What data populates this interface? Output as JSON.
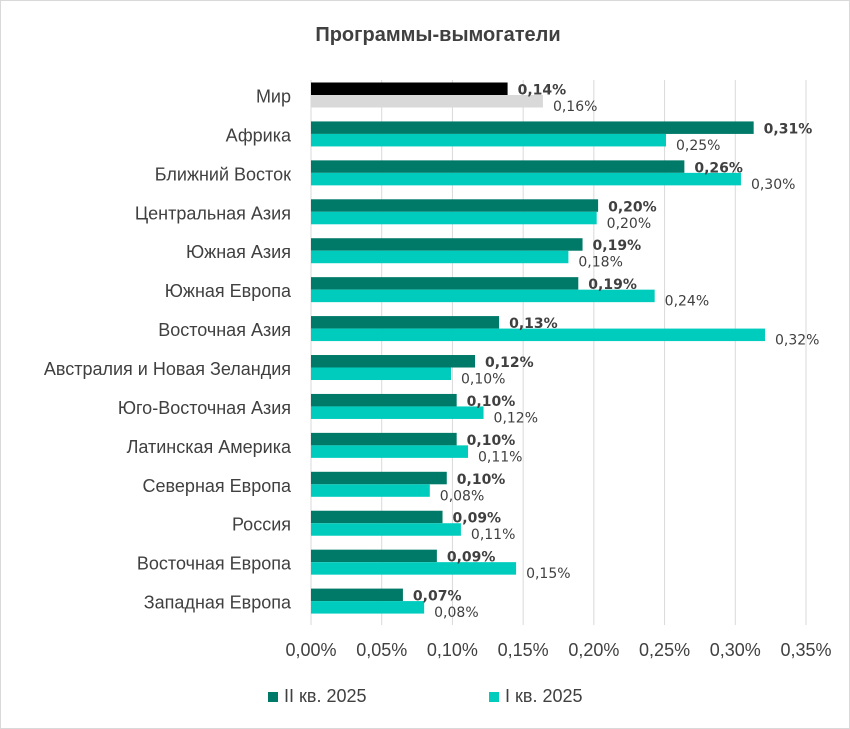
{
  "chart_data": {
    "type": "bar",
    "orientation": "horizontal",
    "title": "Программы-вымогатели",
    "categories": [
      "Мир",
      "Африка",
      "Ближний Восток",
      "Центральная Азия",
      "Южная Азия",
      "Южная Европа",
      "Восточная Азия",
      "Австралия и Новая Зеландия",
      "Юго-Восточная Азия",
      "Латинская Америка",
      "Северная Европа",
      "Россия",
      "Восточная Европа",
      "Западная Европа"
    ],
    "series": [
      {
        "name": "II кв. 2025",
        "color": "#007a68",
        "values": [
          0.139,
          0.313,
          0.264,
          0.203,
          0.192,
          0.189,
          0.133,
          0.116,
          0.103,
          0.103,
          0.096,
          0.093,
          0.089,
          0.065
        ],
        "labels": [
          "0,14%",
          "0,31%",
          "0,26%",
          "0,20%",
          "0,19%",
          "0,19%",
          "0,13%",
          "0,12%",
          "0,10%",
          "0,10%",
          "0,10%",
          "0,09%",
          "0,09%",
          "0,07%"
        ]
      },
      {
        "name": "I кв. 2025",
        "color": "#00ccbd",
        "values": [
          0.164,
          0.251,
          0.304,
          0.202,
          0.182,
          0.243,
          0.321,
          0.099,
          0.122,
          0.111,
          0.084,
          0.106,
          0.145,
          0.08
        ],
        "labels": [
          "0,16%",
          "0,25%",
          "0,30%",
          "0,20%",
          "0,18%",
          "0,24%",
          "0,32%",
          "0,10%",
          "0,12%",
          "0,11%",
          "0,08%",
          "0,11%",
          "0,15%",
          "0,08%"
        ]
      }
    ],
    "highlight_category": "Мир",
    "highlight_colors": [
      "#000000",
      "#d9d9d9"
    ],
    "xlim": [
      0,
      0.35
    ],
    "xticks": [
      0,
      0.05,
      0.1,
      0.15,
      0.2,
      0.25,
      0.3,
      0.35
    ],
    "xtick_labels": [
      "0,00%",
      "0,05%",
      "0,10%",
      "0,15%",
      "0,20%",
      "0,25%",
      "0,30%",
      "0,35%"
    ],
    "grid": "vertical",
    "legend_position": "bottom"
  }
}
